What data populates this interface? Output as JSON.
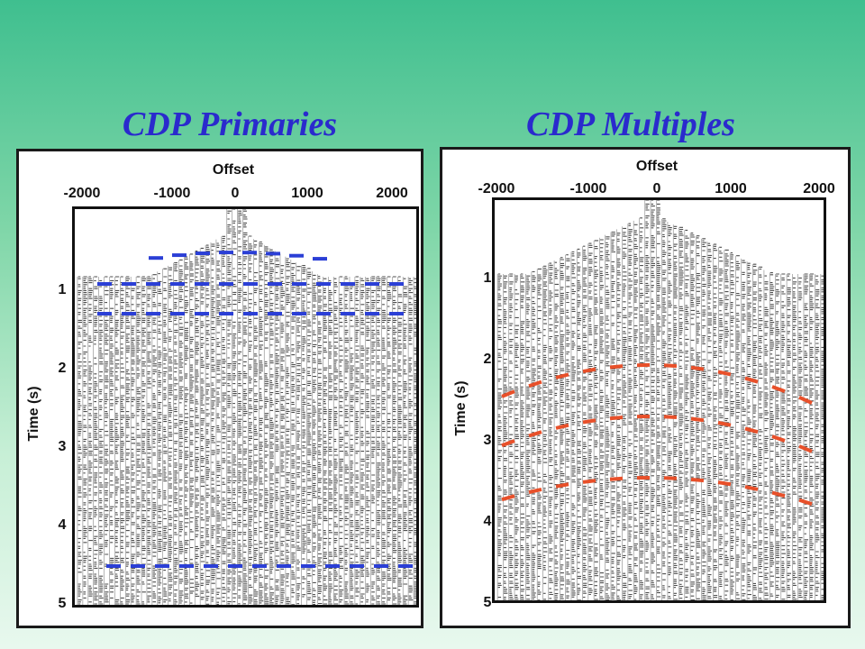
{
  "titles": {
    "left": "CDP Primaries",
    "right": "CDP Multiples"
  },
  "colors": {
    "title": "#2a2acd",
    "primaries_event": "#2b3fd6",
    "multiples_event": "#e8502a",
    "trace": "#222222"
  },
  "panels": {
    "left": {
      "offset_label": "Offset",
      "y_label": "Time (s)",
      "x_ticks": [
        "-2000",
        "-1000",
        "0",
        "1000",
        "2000"
      ],
      "y_ticks": [
        "1",
        "2",
        "3",
        "4",
        "5"
      ]
    },
    "right": {
      "offset_label": "Offset",
      "y_label": "Time (s)",
      "x_ticks": [
        "-2000",
        "-1000",
        "0",
        "1000",
        "2000"
      ],
      "y_ticks": [
        "1",
        "2",
        "3",
        "4",
        "5"
      ]
    }
  }
}
